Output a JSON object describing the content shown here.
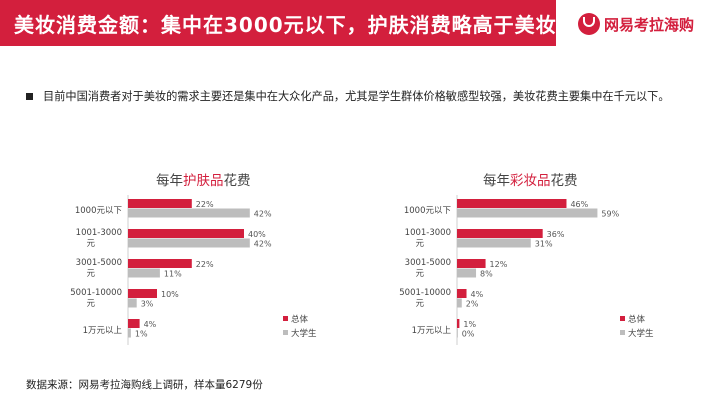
{
  "header": {
    "title": "美妆消费金额：集中在3000元以下，护肤消费略高于美妆",
    "logo_text": "网易考拉海购",
    "accent": "#d31f3d"
  },
  "bullet_text": "目前中国消费者对于美妆的需求主要还是集中在大众化产品，尤其是学生群体价格敏感型较强，美妆花费主要集中在千元以下。",
  "source": "数据来源：网易考拉海购线上调研，样本量6279份",
  "chart_data": [
    {
      "type": "bar",
      "orientation": "horizontal",
      "title_pre": "每年",
      "title_hl": "护肤品",
      "title_post": "花费",
      "categories": [
        "1000元以下",
        "1001-3000元",
        "3001-5000元",
        "5001-10000元",
        "1万元以上"
      ],
      "series": [
        {
          "name": "总体",
          "color": "#d31f3d",
          "values": [
            22,
            40,
            22,
            10,
            4
          ]
        },
        {
          "name": "大学生",
          "color": "#bdbdbd",
          "values": [
            42,
            42,
            11,
            3,
            1
          ]
        }
      ],
      "xlim": [
        0,
        60
      ],
      "legend": "right"
    },
    {
      "type": "bar",
      "orientation": "horizontal",
      "title_pre": "每年",
      "title_hl": "彩妆品",
      "title_post": "花费",
      "categories": [
        "1000元以下",
        "1001-3000元",
        "3001-5000元",
        "5001-10000元",
        "1万元以上"
      ],
      "series": [
        {
          "name": "总体",
          "color": "#d31f3d",
          "values": [
            46,
            36,
            12,
            4,
            1
          ]
        },
        {
          "name": "大学生",
          "color": "#bdbdbd",
          "values": [
            59,
            31,
            8,
            2,
            0
          ]
        }
      ],
      "xlim": [
        0,
        60
      ],
      "legend": "right"
    }
  ]
}
